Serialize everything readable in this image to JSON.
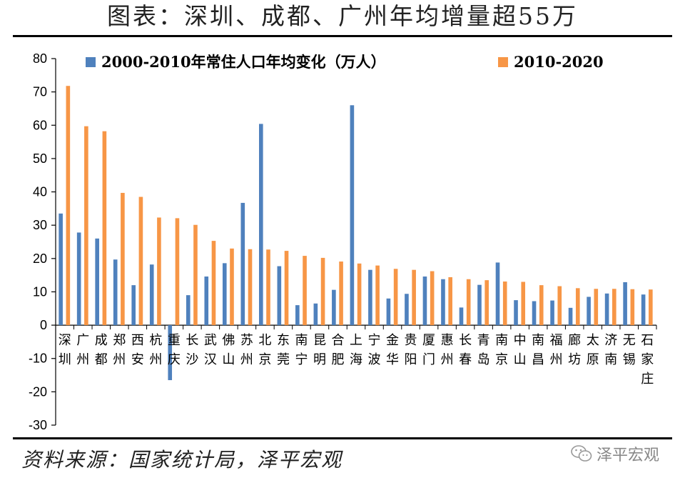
{
  "title": "图表：深圳、成都、广州年均增量超55万",
  "source": "资料来源：国家统计局，泽平宏观",
  "watermark": {
    "text": "泽平宏观",
    "icon": "wechat-icon"
  },
  "chart_data": {
    "type": "bar",
    "ylim": [
      -30,
      80
    ],
    "yticks": [
      -30,
      -20,
      -10,
      0,
      10,
      20,
      30,
      40,
      50,
      60,
      70,
      80
    ],
    "grid": false,
    "legend_position": "top",
    "categories": [
      "深圳",
      "广州",
      "成都",
      "郑州",
      "西安",
      "杭州",
      "重庆",
      "长沙",
      "武汉",
      "佛山",
      "苏州",
      "北京",
      "东莞",
      "南宁",
      "昆明",
      "合肥",
      "上海",
      "宁波",
      "金华",
      "贵阳",
      "厦门",
      "惠州",
      "长春",
      "青岛",
      "南京",
      "中山",
      "南昌",
      "福州",
      "廊坊",
      "太原",
      "济南",
      "无锡",
      "石家庄"
    ],
    "series": [
      {
        "name": "2000-2010年常住人口年均变化（万人）",
        "color": "#4F81BD",
        "values": [
          33.5,
          27.8,
          26.0,
          19.7,
          12.0,
          18.2,
          -16.5,
          9.0,
          14.6,
          18.6,
          36.7,
          60.4,
          17.7,
          6.0,
          6.5,
          10.6,
          66.0,
          16.6,
          8.0,
          9.4,
          14.6,
          13.8,
          5.3,
          12.1,
          18.8,
          7.5,
          7.2,
          7.4,
          5.2,
          8.5,
          9.5,
          12.9,
          9.2
        ]
      },
      {
        "name": "2010-2020",
        "color": "#F79646",
        "values": [
          71.8,
          59.7,
          58.2,
          39.7,
          38.5,
          32.3,
          32.1,
          30.1,
          25.3,
          23.0,
          22.8,
          22.7,
          22.3,
          20.8,
          20.2,
          19.1,
          18.5,
          17.9,
          16.9,
          16.6,
          16.2,
          14.4,
          13.8,
          13.5,
          13.1,
          13.0,
          12.0,
          11.7,
          11.1,
          10.9,
          10.9,
          10.8,
          10.7
        ]
      }
    ]
  }
}
